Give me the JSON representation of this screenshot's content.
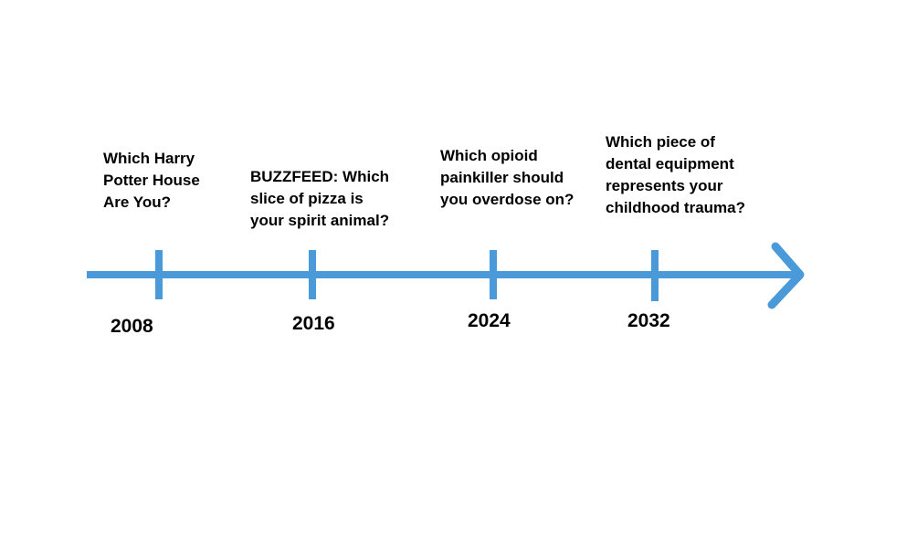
{
  "colors": {
    "timeline": "#4a9ad9",
    "text": "#000000",
    "background": "#ffffff"
  },
  "events": [
    {
      "year": "2008",
      "text": "Which Harry\nPotter House\nAre You?"
    },
    {
      "year": "2016",
      "text": "BUZZFEED: Which\nslice of pizza is\nyour spirit animal?"
    },
    {
      "year": "2024",
      "text": "Which opioid\npainkiller should\nyou overdose on?"
    },
    {
      "year": "2032",
      "text": "Which piece of\ndental equipment\nrepresents your\nchildhood trauma?"
    }
  ]
}
